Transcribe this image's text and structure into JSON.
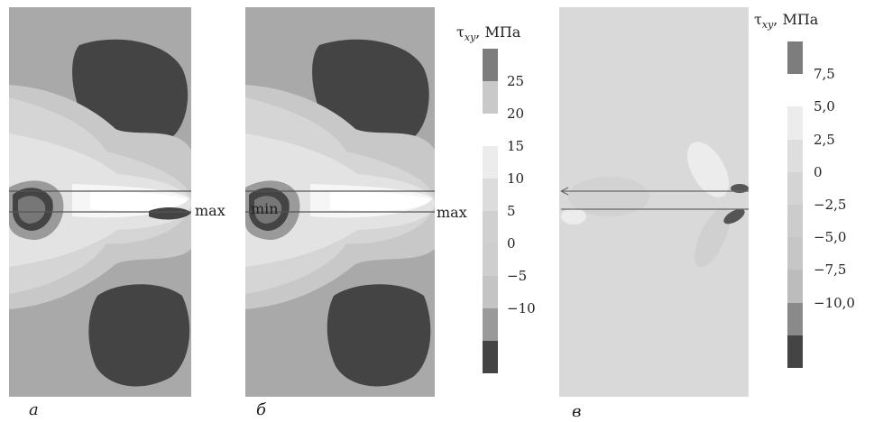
{
  "panels": [
    {
      "caption": "а",
      "min_label": "",
      "max_label": "max"
    },
    {
      "caption": "б",
      "min_label": "min",
      "max_label": "max"
    },
    {
      "caption": "в"
    }
  ],
  "colorbars": [
    {
      "title": "τxy, МПа",
      "symbol": "τ",
      "subscript": "xy",
      "unit": ", МПа",
      "ticks": [
        "25",
        "20",
        "15",
        "10",
        "5",
        "0",
        "−5",
        "−10"
      ],
      "colors": [
        "#7d7d7d",
        "#c9c9c9",
        "#ffffff",
        "#ececec",
        "#dcdcdc",
        "#d0d0d0",
        "#cecece",
        "#c4c4c4",
        "#9a9a9a",
        "#444444"
      ]
    },
    {
      "title": "τxy, МПа",
      "symbol": "τ",
      "subscript": "xy",
      "unit": ", МПа",
      "ticks": [
        "7,5",
        "5,0",
        "2,5",
        "0",
        "−2,5",
        "−5,0",
        "−7,5",
        "−10,0"
      ],
      "colors": [
        "#7d7d7d",
        "#ffffff",
        "#ececec",
        "#dedede",
        "#d4d4d4",
        "#cccccc",
        "#c6c6c6",
        "#bcbcbc",
        "#8a8a8a",
        "#444444"
      ]
    }
  ]
}
